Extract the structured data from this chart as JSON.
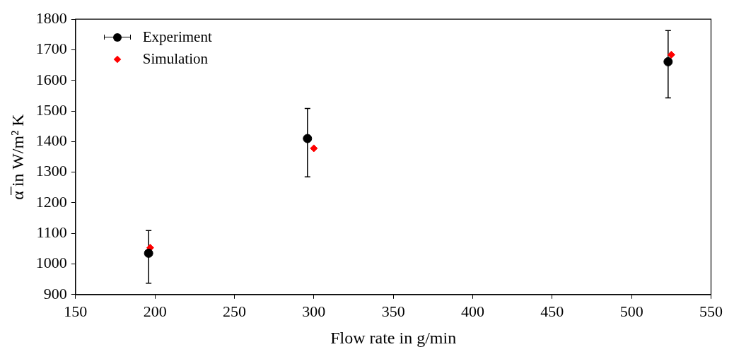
{
  "chart_data": {
    "type": "scatter",
    "xlabel": "Flow rate in g/min",
    "ylabel": "α̅ in W/m² K",
    "xlim": [
      150,
      550
    ],
    "ylim": [
      900,
      1800
    ],
    "xticks": [
      150,
      200,
      250,
      300,
      350,
      400,
      450,
      500,
      550
    ],
    "yticks": [
      900,
      1000,
      1100,
      1200,
      1300,
      1400,
      1500,
      1600,
      1700,
      1800
    ],
    "grid": false,
    "legend": "top left",
    "series": [
      {
        "name": "Experiment",
        "color": "#000000",
        "marker": "circle",
        "x": [
          196,
          296,
          523
        ],
        "values": [
          1035,
          1410,
          1661
        ],
        "errors": [
          [
            937,
            1109
          ],
          [
            1285,
            1508
          ],
          [
            1543,
            1763
          ]
        ]
      },
      {
        "name": "Simulation",
        "color": "#ff0000",
        "marker": "diamond",
        "x": [
          197,
          300,
          525
        ],
        "values": [
          1053,
          1378,
          1684
        ]
      }
    ]
  }
}
